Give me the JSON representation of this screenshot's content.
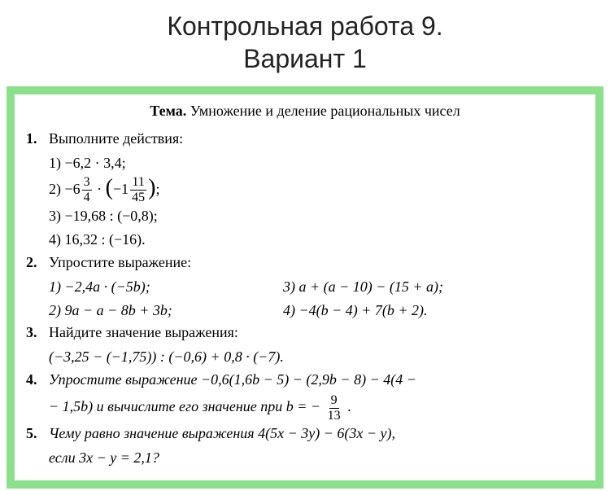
{
  "header": {
    "line1": "Контрольная работа 9.",
    "line2": "Вариант 1"
  },
  "topic": {
    "label": "Тема.",
    "text": "Умножение и деление рациональных чисел"
  },
  "p1": {
    "num": "1.",
    "prompt": "Выполните действия:",
    "s1": "1) −6,2 · 3,4;",
    "s2a": "2) −6",
    "s2_f1n": "3",
    "s2_f1d": "4",
    "s2b": " · ",
    "s2c": "−1",
    "s2_f2n": "11",
    "s2_f2d": "45",
    "s2d": ";",
    "s3": "3) −19,68 : (−0,8);",
    "s4": "4) 16,32 : (−16)."
  },
  "p2": {
    "num": "2.",
    "prompt": "Упростите выражение:",
    "r1l": "1) −2,4a · (−5b);",
    "r1r": "3) a + (a − 10) − (15 + a);",
    "r2l": "2) 9a − a − 8b + 3b;",
    "r2r": "4) −4(b − 4) + 7(b + 2)."
  },
  "p3": {
    "num": "3.",
    "line1": "Найдите значение выражения:",
    "line2": "(−3,25 − (−1,75)) : (−0,6) + 0,8 · (−7)."
  },
  "p4": {
    "num": "4.",
    "line1": "Упростите выражение −0,6(1,6b − 5) − (2,9b − 8) − 4(4 −",
    "line2a": "− 1,5b) и вычислите его значение при  b = − ",
    "fn": "9",
    "fd": "13",
    "line2b": " ."
  },
  "p5": {
    "num": "5.",
    "line1": "Чему равно значение выражения 4(5x − 3y) − 6(3x − y),",
    "line2": "если 3x − y = 2,1?"
  },
  "colors": {
    "border": "#8ce08c",
    "background": "#ffffff",
    "text": "#000000",
    "header_text": "#222222"
  }
}
